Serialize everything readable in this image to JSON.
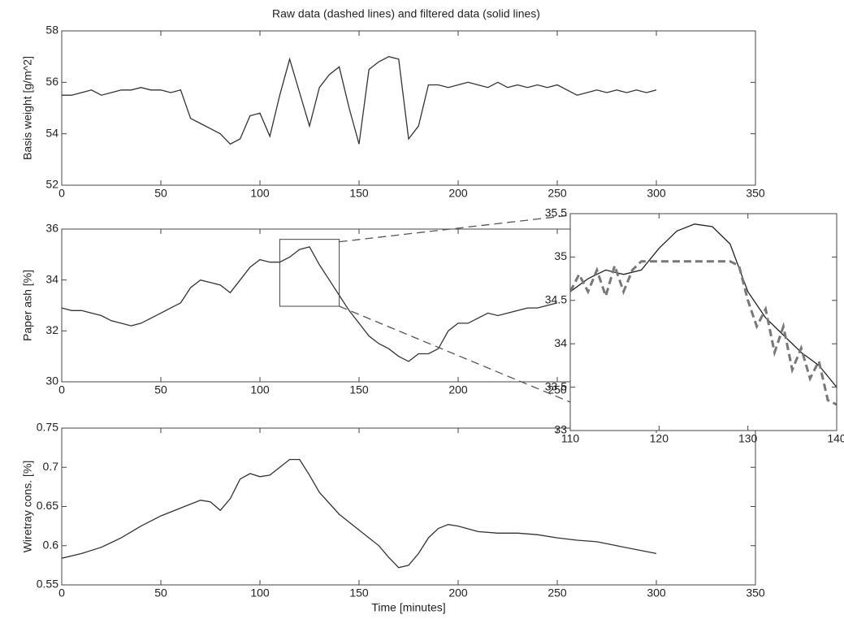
{
  "chart_data": [
    {
      "type": "line",
      "title": "Raw data (dashed lines) and filtered data (solid lines)",
      "ylabel": "Basis weight [g/m^2]",
      "x": [
        0,
        5,
        10,
        15,
        20,
        25,
        30,
        35,
        40,
        45,
        50,
        55,
        60,
        65,
        70,
        75,
        80,
        85,
        90,
        95,
        100,
        105,
        110,
        115,
        120,
        125,
        130,
        135,
        140,
        145,
        150,
        155,
        160,
        165,
        170,
        175,
        180,
        185,
        190,
        195,
        200,
        205,
        210,
        215,
        220,
        225,
        230,
        235,
        240,
        245,
        250,
        255,
        260,
        265,
        270,
        275,
        280,
        285,
        290,
        295,
        300
      ],
      "values": [
        55.5,
        55.5,
        55.6,
        55.7,
        55.5,
        55.6,
        55.7,
        55.7,
        55.8,
        55.7,
        55.7,
        55.6,
        55.7,
        54.6,
        54.4,
        54.2,
        54.0,
        53.6,
        53.8,
        54.7,
        54.8,
        53.9,
        55.5,
        56.9,
        55.6,
        54.3,
        55.8,
        56.3,
        56.6,
        55.0,
        53.6,
        56.5,
        56.8,
        57.0,
        56.9,
        53.8,
        54.3,
        55.9,
        55.9,
        55.8,
        55.9,
        56.0,
        55.9,
        55.8,
        56.0,
        55.8,
        55.9,
        55.8,
        55.9,
        55.8,
        55.9,
        55.7,
        55.5,
        55.6,
        55.7,
        55.6,
        55.7,
        55.6,
        55.7,
        55.6,
        55.7
      ],
      "color": "#333333",
      "xlim": [
        0,
        350
      ],
      "xticks": [
        0,
        50,
        100,
        150,
        200,
        250,
        300,
        350
      ],
      "ylim": [
        52,
        58
      ],
      "yticks": [
        52,
        54,
        56,
        58
      ]
    },
    {
      "type": "line",
      "ylabel": "Paper ash [%]",
      "x": [
        0,
        5,
        10,
        15,
        20,
        25,
        30,
        35,
        40,
        45,
        50,
        55,
        60,
        65,
        70,
        75,
        80,
        85,
        90,
        95,
        100,
        105,
        110,
        115,
        120,
        125,
        130,
        135,
        140,
        145,
        150,
        155,
        160,
        165,
        170,
        175,
        180,
        185,
        190,
        195,
        200,
        205,
        210,
        215,
        220,
        225,
        230,
        235,
        240,
        245,
        250
      ],
      "values": [
        32.9,
        32.8,
        32.8,
        32.7,
        32.6,
        32.4,
        32.3,
        32.2,
        32.3,
        32.5,
        32.7,
        32.9,
        33.1,
        33.7,
        34.0,
        33.9,
        33.8,
        33.5,
        34.0,
        34.5,
        34.8,
        34.7,
        34.7,
        34.9,
        35.2,
        35.3,
        34.6,
        34.0,
        33.4,
        32.8,
        32.3,
        31.8,
        31.5,
        31.3,
        31.0,
        30.8,
        31.1,
        31.1,
        31.3,
        32.0,
        32.3,
        32.3,
        32.5,
        32.7,
        32.6,
        32.7,
        32.8,
        32.9,
        32.9,
        33.0,
        33.1
      ],
      "color": "#333333",
      "xlim": [
        0,
        350
      ],
      "xticks": [
        0,
        50,
        100,
        150,
        200,
        250
      ],
      "ylim": [
        30,
        36
      ],
      "yticks": [
        30,
        32,
        34,
        36
      ]
    },
    {
      "type": "line",
      "series": [
        {
          "color": "#222222",
          "x": [
            110,
            112,
            114,
            116,
            118,
            120,
            122,
            124,
            126,
            128,
            130,
            132,
            134,
            136,
            138,
            140
          ],
          "values": [
            34.6,
            34.75,
            34.85,
            34.8,
            34.85,
            35.1,
            35.3,
            35.38,
            35.35,
            35.15,
            34.6,
            34.3,
            34.1,
            33.9,
            33.75,
            33.5
          ]
        },
        {
          "color": "#777777",
          "dashed": true,
          "x": [
            110,
            111,
            112,
            113,
            114,
            115,
            116,
            117,
            118,
            128,
            129,
            130,
            131,
            132,
            133,
            134,
            135,
            136,
            137,
            138,
            139,
            140
          ],
          "values": [
            34.6,
            34.8,
            34.6,
            34.85,
            34.55,
            34.9,
            34.6,
            34.85,
            34.95,
            34.95,
            34.9,
            34.5,
            34.2,
            34.4,
            33.9,
            34.2,
            33.7,
            33.95,
            33.6,
            33.8,
            33.35,
            33.3
          ]
        }
      ],
      "xlim": [
        110,
        140
      ],
      "xticks": [
        110,
        120,
        130,
        140
      ],
      "ylim": [
        33,
        35.5
      ],
      "yticks": [
        33,
        33.5,
        34,
        34.5,
        35,
        35.5
      ]
    },
    {
      "type": "line",
      "ylabel": "Wiretray cons. [%]",
      "xlabel": "Time [minutes]",
      "x": [
        0,
        10,
        20,
        30,
        40,
        50,
        60,
        70,
        75,
        80,
        85,
        90,
        95,
        100,
        105,
        110,
        115,
        120,
        125,
        130,
        140,
        150,
        160,
        165,
        170,
        175,
        180,
        185,
        190,
        195,
        200,
        210,
        220,
        230,
        240,
        250,
        260,
        270,
        280,
        290,
        300
      ],
      "values": [
        0.584,
        0.59,
        0.598,
        0.61,
        0.625,
        0.638,
        0.648,
        0.658,
        0.656,
        0.645,
        0.66,
        0.685,
        0.692,
        0.688,
        0.69,
        0.7,
        0.71,
        0.71,
        0.69,
        0.668,
        0.64,
        0.62,
        0.6,
        0.585,
        0.572,
        0.575,
        0.59,
        0.61,
        0.622,
        0.627,
        0.625,
        0.618,
        0.616,
        0.616,
        0.614,
        0.61,
        0.607,
        0.605,
        0.6,
        0.595,
        0.59
      ],
      "color": "#333333",
      "xlim": [
        0,
        350
      ],
      "xticks": [
        0,
        50,
        100,
        150,
        200,
        250,
        300,
        350
      ],
      "ylim": [
        0.55,
        0.75
      ],
      "yticks": [
        0.55,
        0.6,
        0.65,
        0.7,
        0.75
      ]
    }
  ]
}
